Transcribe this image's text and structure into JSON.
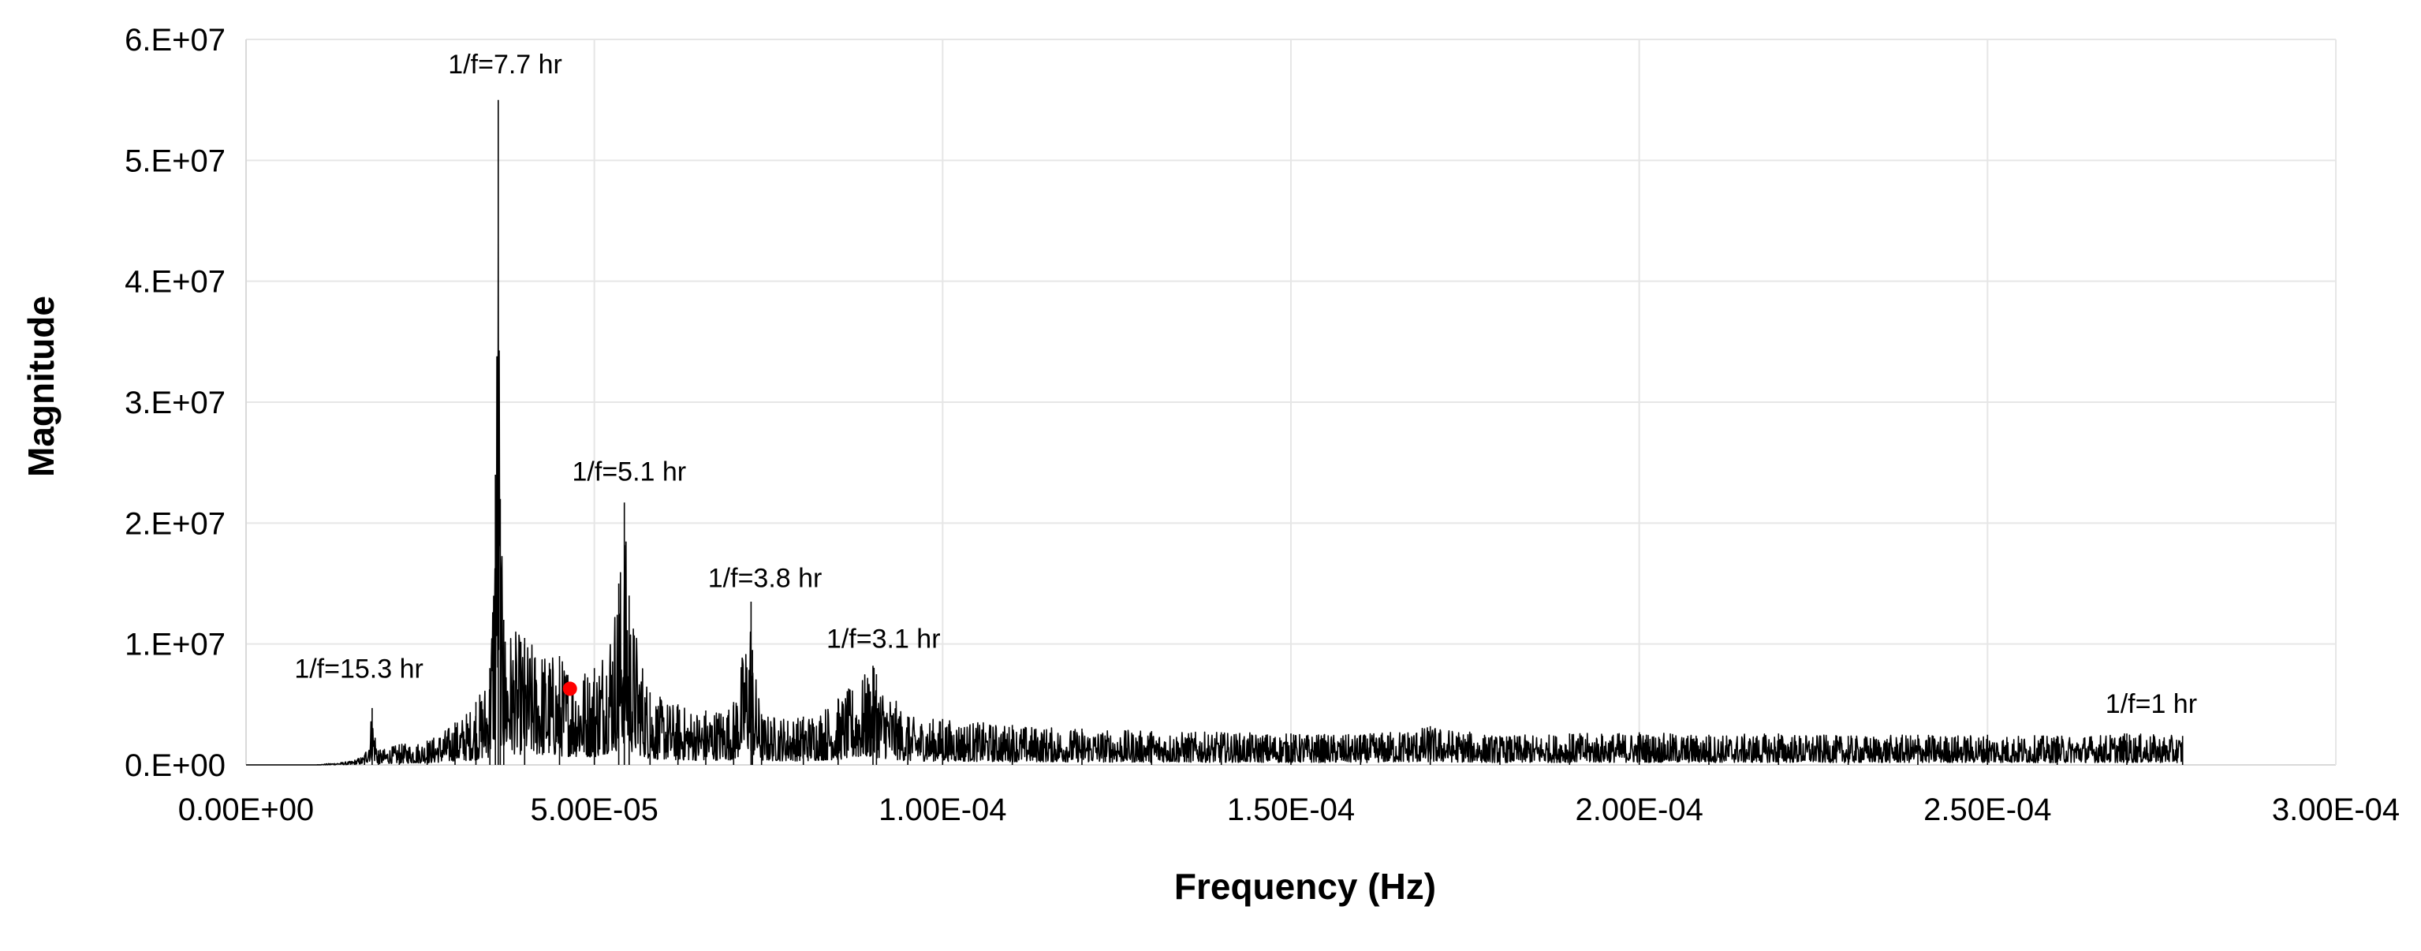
{
  "chart_data": {
    "type": "line",
    "title": "",
    "xlabel": "Frequency (Hz)",
    "ylabel": "Magnitude",
    "xlim": [
      0,
      0.0003
    ],
    "ylim": [
      0,
      60000000
    ],
    "x_tick_labels": [
      "0.00E+00",
      "5.00E-05",
      "1.00E-04",
      "1.50E-04",
      "2.00E-04",
      "2.50E-04",
      "3.00E-04"
    ],
    "y_tick_labels": [
      "0.E+00",
      "1.E+07",
      "2.E+07",
      "3.E+07",
      "4.E+07",
      "5.E+07",
      "6.E+07"
    ],
    "grid": true,
    "legend": "none",
    "series_color": "#000000",
    "marker_color": "#ff0000",
    "series": [
      {
        "x": [
          0,
          1e-05,
          1.5e-05,
          1.7e-05,
          1.81e-05,
          1.9e-05,
          2.2e-05,
          2.6e-05,
          3e-05,
          3.3e-05,
          3.5e-05,
          3.58e-05,
          3.62e-05,
          3.65e-05,
          3.7e-05,
          4e-05,
          4.5e-05,
          5e-05,
          5.35e-05,
          5.43e-05,
          5.5e-05,
          5.8e-05,
          6.2e-05,
          6.6e-05,
          7e-05,
          7.25e-05,
          7.27e-05,
          7.4e-05,
          8e-05,
          8.5e-05,
          9e-05,
          9.05e-05,
          9.5e-05,
          0.0001,
          0.00011,
          0.00012,
          0.00013,
          0.00014,
          0.00015,
          0.00016,
          0.00017,
          0.00018,
          0.00019,
          0.0002,
          0.00021,
          0.00022,
          0.00023,
          0.00024,
          0.00025,
          0.00026,
          0.00027,
          0.000278
        ],
        "y": [
          0,
          0,
          300000,
          800000,
          4700000,
          1200000,
          1700000,
          2000000,
          3500000,
          5200000,
          8000000,
          24000000,
          55000000,
          22000000,
          12000000,
          10500000,
          9000000,
          8000000,
          15000000,
          21700000,
          14000000,
          6000000,
          5000000,
          4500000,
          5200000,
          13500000,
          9500000,
          4200000,
          4000000,
          5500000,
          8200000,
          7500000,
          4000000,
          3800000,
          3300000,
          3000000,
          2800000,
          2700000,
          2600000,
          2500000,
          3200000,
          2400000,
          2600000,
          2700000,
          2500000,
          2600000,
          2400000,
          2500000,
          2500000,
          2400000,
          2600000,
          2400000
        ]
      }
    ],
    "marker": {
      "x": 4.65e-05,
      "y": 6300000
    },
    "annotations": [
      {
        "text": "1/f=15.3 hr",
        "x": 1.62e-05,
        "y": 7200000
      },
      {
        "text": "1/f=7.7 hr",
        "x": 3.72e-05,
        "y": 57200000
      },
      {
        "text": "1/f=5.1 hr",
        "x": 5.5e-05,
        "y": 23500000
      },
      {
        "text": "1/f=3.8 hr",
        "x": 7.45e-05,
        "y": 14700000
      },
      {
        "text": "1/f=3.1 hr",
        "x": 9.15e-05,
        "y": 9700000
      },
      {
        "text": "1/f=1 hr",
        "x": 0.0002735,
        "y": 4300000
      }
    ]
  }
}
